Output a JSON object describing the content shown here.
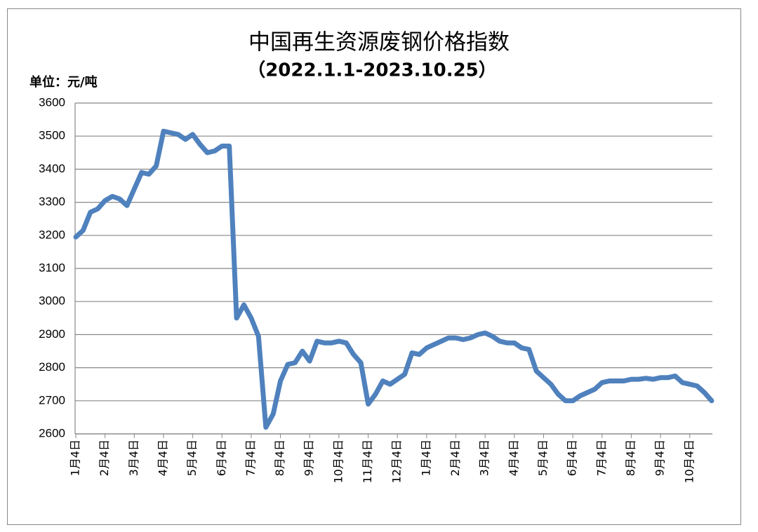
{
  "chart_data": {
    "type": "line",
    "title": "中国再生资源废钢价格指数",
    "subtitle": "（2022.1.1-2023.10.25）",
    "y_axis_label": "单位：元/吨",
    "color": "#4f81bd",
    "grid": true,
    "ylim": [
      2600,
      3600
    ],
    "yticks": [
      2600,
      2700,
      2800,
      2900,
      3000,
      3100,
      3200,
      3300,
      3400,
      3500,
      3600
    ],
    "categories": [
      "1月4日",
      null,
      null,
      null,
      "2月4日",
      null,
      null,
      null,
      "3月4日",
      null,
      null,
      null,
      "4月4日",
      null,
      null,
      null,
      "5月4日",
      null,
      null,
      null,
      "6月4日",
      null,
      null,
      null,
      "7月4日",
      null,
      null,
      null,
      "8月4日",
      null,
      null,
      null,
      "9月4日",
      null,
      null,
      null,
      "10月4日",
      null,
      null,
      null,
      "11月4日",
      null,
      null,
      null,
      "12月4日",
      null,
      null,
      null,
      "1月4日",
      null,
      null,
      null,
      "2月4日",
      null,
      null,
      null,
      "3月4日",
      null,
      null,
      null,
      "4月4日",
      null,
      null,
      null,
      "5月4日",
      null,
      null,
      null,
      "6月4日",
      null,
      null,
      null,
      "7月4日",
      null,
      null,
      null,
      "8月4日",
      null,
      null,
      null,
      "9月4日",
      null,
      null,
      null,
      "10月4日",
      null,
      null,
      null
    ],
    "values": [
      3195,
      3215,
      3270,
      3280,
      3305,
      3318,
      3310,
      3290,
      3340,
      3390,
      3385,
      3410,
      3515,
      3510,
      3505,
      3490,
      3505,
      3475,
      3450,
      3455,
      3470,
      3470,
      2950,
      2990,
      2950,
      2895,
      2620,
      2660,
      2760,
      2810,
      2815,
      2850,
      2820,
      2880,
      2875,
      2875,
      2880,
      2875,
      2840,
      2815,
      2690,
      2720,
      2760,
      2750,
      2765,
      2780,
      2845,
      2840,
      2860,
      2870,
      2880,
      2890,
      2890,
      2885,
      2890,
      2900,
      2905,
      2895,
      2880,
      2875,
      2875,
      2860,
      2855,
      2790,
      2770,
      2750,
      2720,
      2700,
      2700,
      2715,
      2725,
      2735,
      2755,
      2760,
      2760,
      2760,
      2765,
      2765,
      2768,
      2765,
      2770,
      2770,
      2775,
      2755,
      2750,
      2745,
      2725,
      2700
    ]
  }
}
